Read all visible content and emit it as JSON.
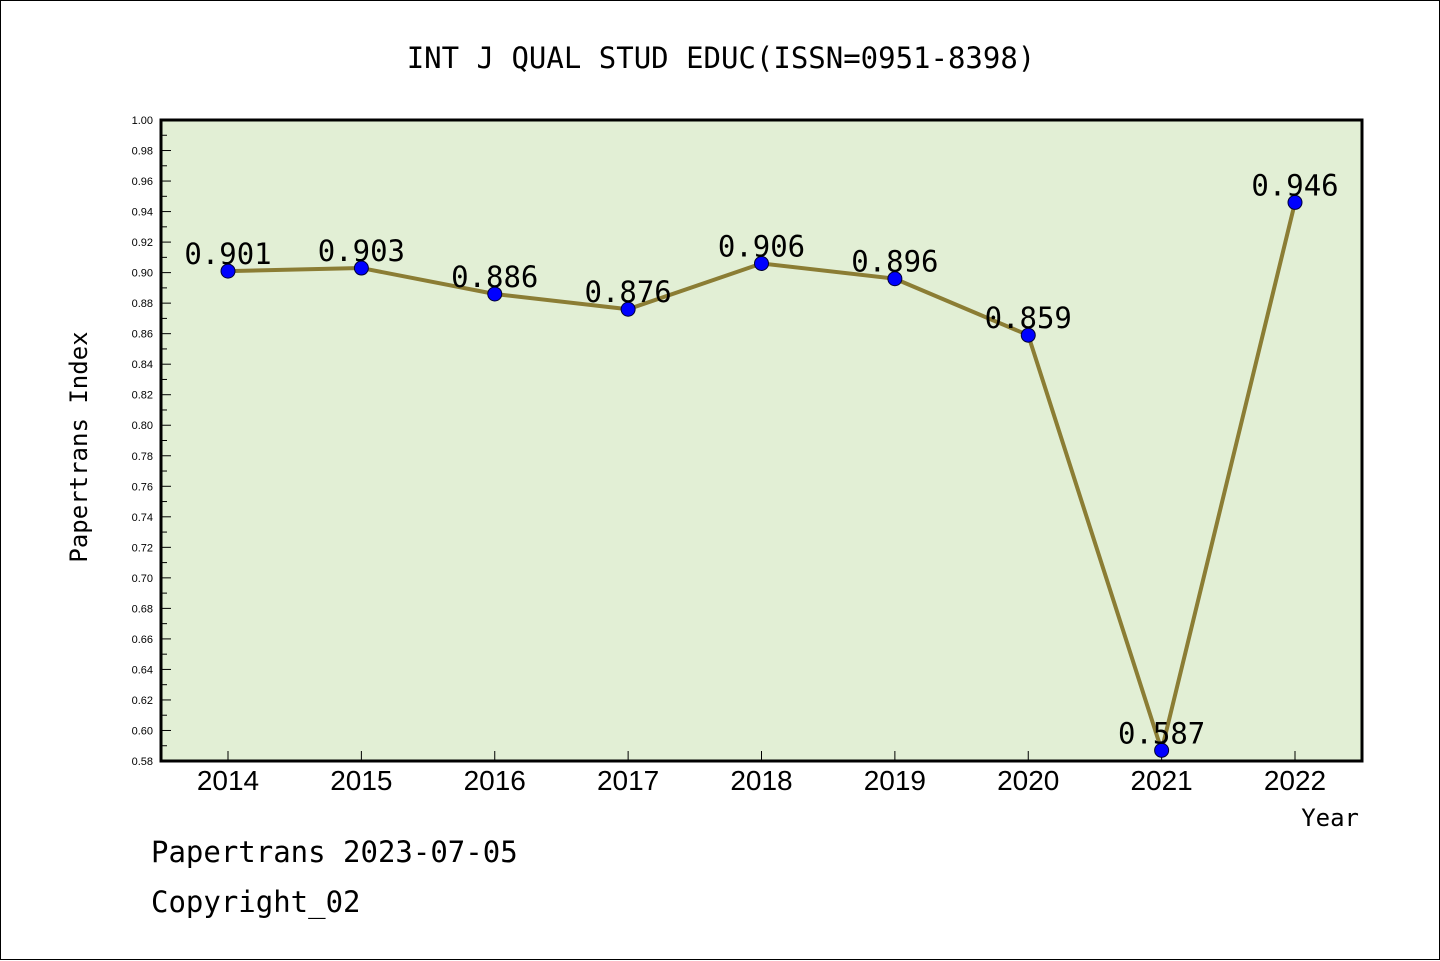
{
  "chart_data": {
    "type": "line",
    "title": "INT J QUAL STUD EDUC(ISSN=0951-8398)",
    "xlabel": "Year",
    "ylabel": "Papertrans Index",
    "categories": [
      "2014",
      "2015",
      "2016",
      "2017",
      "2018",
      "2019",
      "2020",
      "2021",
      "2022"
    ],
    "series": [
      {
        "values": [
          0.901,
          0.903,
          0.886,
          0.876,
          0.906,
          0.896,
          0.859,
          0.587,
          0.946
        ],
        "labels": [
          "0.901",
          "0.903",
          "0.886",
          "0.876",
          "0.906",
          "0.896",
          "0.859",
          "0.587",
          "0.946"
        ]
      }
    ],
    "ylim": [
      0.58,
      1.0
    ],
    "yticks": [
      "0.58",
      "0.60",
      "0.62",
      "0.64",
      "0.66",
      "0.68",
      "0.70",
      "0.72",
      "0.74",
      "0.76",
      "0.78",
      "0.80",
      "0.82",
      "0.84",
      "0.86",
      "0.88",
      "0.90",
      "0.92",
      "0.94",
      "0.96",
      "0.98",
      "1.00"
    ],
    "grid": false,
    "colors": {
      "plot_background": "#e2efd5",
      "line": "#8b7d34",
      "marker": "#0000ff"
    }
  },
  "footer": {
    "line1": "Papertrans 2023-07-05",
    "line2": "Copyright_02"
  }
}
